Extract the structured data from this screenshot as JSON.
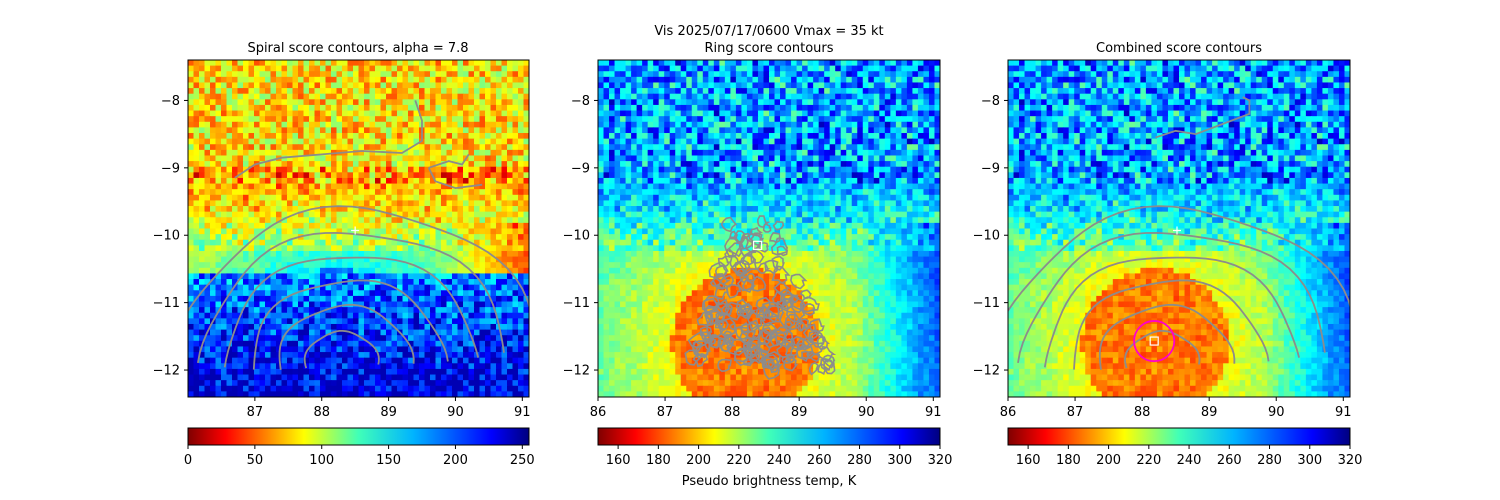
{
  "suptitle_line1": "Vis  2025/07/17/0600    Vmax = 35 kt",
  "colors": {
    "contour": "#8c8c8c",
    "center_marker": "#ffffff",
    "best_circle": "#ff00cc"
  },
  "chart_data": [
    {
      "type": "heatmap",
      "title": "Spiral score contours, alpha =  7.8",
      "xlim": [
        86.0,
        91.1
      ],
      "ylim": [
        -12.4,
        -7.4
      ],
      "x_ticks": [
        "87",
        "88",
        "89",
        "90",
        "91"
      ],
      "x_tick_values": [
        87,
        88,
        89,
        90,
        91
      ],
      "y_ticks": [
        "−8",
        "−9",
        "−10",
        "−11",
        "−12"
      ],
      "y_tick_values": [
        -8,
        -9,
        -10,
        -11,
        -12
      ],
      "colorbar": {
        "range": [
          0,
          255
        ],
        "ticks": [
          "0",
          "50",
          "100",
          "150",
          "200",
          "250"
        ],
        "tick_values": [
          0,
          50,
          100,
          150,
          200,
          250
        ],
        "label": ""
      },
      "markers": [
        {
          "kind": "plus",
          "x": 88.5,
          "y": -9.93
        }
      ],
      "contour_style": "spiral"
    },
    {
      "type": "heatmap",
      "title": "Ring score contours",
      "xlim": [
        86.0,
        91.1
      ],
      "ylim": [
        -12.4,
        -7.4
      ],
      "x_ticks": [
        "86",
        "87",
        "88",
        "89",
        "90",
        "91"
      ],
      "x_tick_values": [
        86,
        87,
        88,
        89,
        90,
        91
      ],
      "y_ticks": [
        "−8",
        "−9",
        "−10",
        "−11",
        "−12"
      ],
      "y_tick_values": [
        -8,
        -9,
        -10,
        -11,
        -12
      ],
      "colorbar": {
        "range": [
          150,
          320
        ],
        "ticks": [
          "160",
          "180",
          "200",
          "220",
          "240",
          "260",
          "280",
          "300",
          "320"
        ],
        "tick_values": [
          160,
          180,
          200,
          220,
          240,
          260,
          280,
          300,
          320
        ],
        "label": "Pseudo brightness temp, K"
      },
      "markers": [
        {
          "kind": "square",
          "x": 88.38,
          "y": -10.15
        }
      ],
      "contour_style": "ring"
    },
    {
      "type": "heatmap",
      "title": "Combined score contours",
      "xlim": [
        86.0,
        91.1
      ],
      "ylim": [
        -12.4,
        -7.4
      ],
      "x_ticks": [
        "86",
        "87",
        "88",
        "89",
        "90",
        "91"
      ],
      "x_tick_values": [
        86,
        87,
        88,
        89,
        90,
        91
      ],
      "y_ticks": [
        "−8",
        "−9",
        "−10",
        "−11",
        "−12"
      ],
      "y_tick_values": [
        -8,
        -9,
        -10,
        -11,
        -12
      ],
      "colorbar": {
        "range": [
          150,
          320
        ],
        "ticks": [
          "160",
          "180",
          "200",
          "220",
          "240",
          "260",
          "280",
          "300",
          "320"
        ],
        "tick_values": [
          160,
          180,
          200,
          220,
          240,
          260,
          280,
          300,
          320
        ],
        "label": ""
      },
      "markers": [
        {
          "kind": "plus",
          "x": 88.52,
          "y": -9.93
        },
        {
          "kind": "square",
          "x": 88.18,
          "y": -11.57
        },
        {
          "kind": "circle",
          "x": 88.18,
          "y": -11.57,
          "radius_deg": 0.3
        }
      ],
      "contour_style": "combined"
    }
  ]
}
